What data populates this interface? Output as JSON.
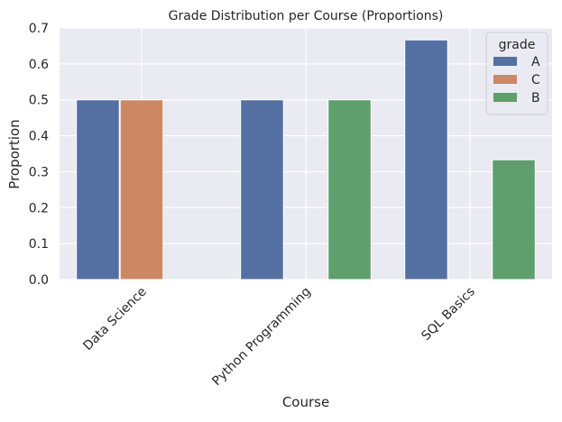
{
  "chart_data": {
    "type": "bar",
    "title": "Grade Distribution per Course (Proportions)",
    "xlabel": "Course",
    "ylabel": "Proportion",
    "categories": [
      "Data Science",
      "Python Programming",
      "SQL Basics"
    ],
    "ylim": [
      0,
      0.7
    ],
    "yticks": [
      "0.0",
      "0.1",
      "0.2",
      "0.3",
      "0.4",
      "0.5",
      "0.6",
      "0.7"
    ],
    "grid": true,
    "legend": {
      "title": "grade",
      "placement": "top-right"
    },
    "series": [
      {
        "name": "A",
        "color": "#5470a2",
        "values": [
          0.5,
          0.5,
          0.6667
        ]
      },
      {
        "name": "C",
        "color": "#cd8863",
        "values": [
          0.5,
          null,
          null
        ]
      },
      {
        "name": "B",
        "color": "#5e9f6d",
        "values": [
          null,
          0.5,
          0.3333
        ]
      }
    ],
    "colors": {
      "plot_background": "#eaeaf2",
      "grid": "#ffffff"
    }
  }
}
